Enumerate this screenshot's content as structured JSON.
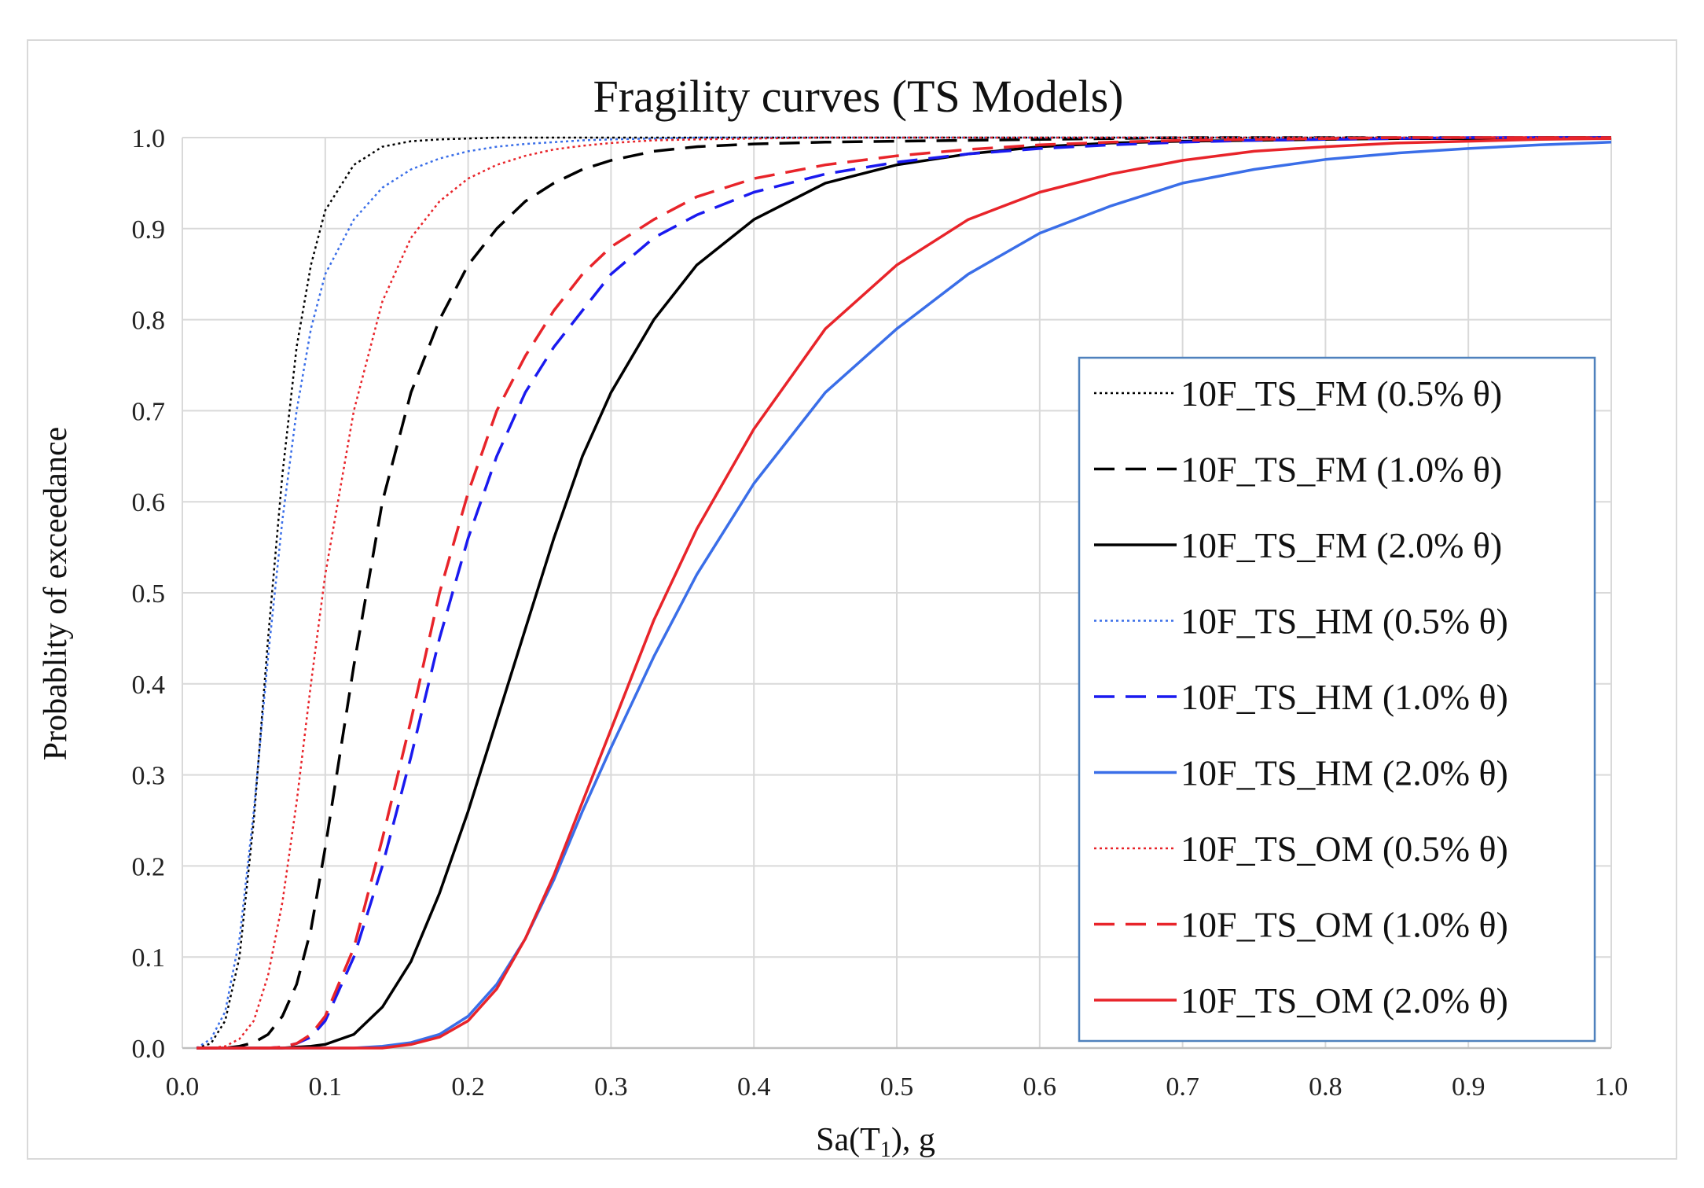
{
  "chart_data": {
    "type": "line",
    "title": "Fragility curves (TS Models)",
    "xlabel": "Sa(T1), g",
    "xlabel_main": "Sa(T",
    "xlabel_sub": "1",
    "xlabel_tail": "), g",
    "ylabel": "Probablity of exceedance",
    "xlim": [
      0.0,
      1.0
    ],
    "ylim": [
      0.0,
      1.0
    ],
    "xticks": [
      "0.0",
      "0.1",
      "0.2",
      "0.3",
      "0.4",
      "0.5",
      "0.6",
      "0.7",
      "0.8",
      "0.9",
      "1.0"
    ],
    "yticks": [
      "0.0",
      "0.1",
      "0.2",
      "0.3",
      "0.4",
      "0.5",
      "0.6",
      "0.7",
      "0.8",
      "0.9",
      "1.0"
    ],
    "grid": true,
    "legend_position": "right",
    "x": [
      0.01,
      0.02,
      0.03,
      0.04,
      0.05,
      0.06,
      0.07,
      0.08,
      0.09,
      0.1,
      0.12,
      0.14,
      0.16,
      0.18,
      0.2,
      0.22,
      0.24,
      0.26,
      0.28,
      0.3,
      0.33,
      0.36,
      0.4,
      0.45,
      0.5,
      0.55,
      0.6,
      0.65,
      0.7,
      0.75,
      0.8,
      0.85,
      0.9,
      0.95,
      1.0
    ],
    "series": [
      {
        "name": "10F_TS_FM (0.5% θ)",
        "color": "#000000",
        "style": "dotted",
        "values": [
          0.0,
          0.005,
          0.03,
          0.1,
          0.25,
          0.45,
          0.63,
          0.77,
          0.86,
          0.92,
          0.97,
          0.99,
          0.996,
          0.998,
          0.999,
          1.0,
          1.0,
          1.0,
          1.0,
          1.0,
          1.0,
          1.0,
          1.0,
          1.0,
          1.0,
          1.0,
          1.0,
          1.0,
          1.0,
          1.0,
          1.0,
          1.0,
          1.0,
          1.0,
          1.0
        ]
      },
      {
        "name": "10F_TS_FM (1.0% θ)",
        "color": "#000000",
        "style": "dashed",
        "values": [
          0.0,
          0.0,
          0.0,
          0.002,
          0.006,
          0.015,
          0.035,
          0.07,
          0.13,
          0.22,
          0.42,
          0.6,
          0.72,
          0.8,
          0.86,
          0.9,
          0.93,
          0.95,
          0.965,
          0.975,
          0.985,
          0.99,
          0.993,
          0.995,
          0.996,
          0.997,
          0.998,
          0.999,
          1.0,
          1.0,
          1.0,
          1.0,
          1.0,
          1.0,
          1.0
        ]
      },
      {
        "name": "10F_TS_FM (2.0% θ)",
        "color": "#000000",
        "style": "solid",
        "values": [
          0.0,
          0.0,
          0.0,
          0.0,
          0.0,
          0.0,
          0.0,
          0.001,
          0.002,
          0.004,
          0.015,
          0.045,
          0.095,
          0.17,
          0.26,
          0.36,
          0.46,
          0.56,
          0.65,
          0.72,
          0.8,
          0.86,
          0.91,
          0.95,
          0.97,
          0.982,
          0.99,
          0.994,
          0.996,
          0.997,
          0.998,
          0.999,
          0.999,
          1.0,
          1.0
        ]
      },
      {
        "name": "10F_TS_HM (0.5% θ)",
        "color": "#3a6ee8",
        "style": "dotted",
        "values": [
          0.0,
          0.01,
          0.04,
          0.12,
          0.26,
          0.43,
          0.58,
          0.7,
          0.79,
          0.85,
          0.91,
          0.945,
          0.965,
          0.977,
          0.985,
          0.99,
          0.993,
          0.995,
          0.997,
          0.998,
          0.999,
          1.0,
          1.0,
          1.0,
          1.0,
          1.0,
          1.0,
          1.0,
          1.0,
          1.0,
          1.0,
          1.0,
          1.0,
          1.0,
          1.0
        ]
      },
      {
        "name": "10F_TS_HM (1.0% θ)",
        "color": "#1a1aef",
        "style": "dashed",
        "values": [
          0.0,
          0.0,
          0.0,
          0.0,
          0.0,
          0.0,
          0.001,
          0.005,
          0.012,
          0.03,
          0.1,
          0.2,
          0.32,
          0.45,
          0.56,
          0.65,
          0.72,
          0.77,
          0.81,
          0.85,
          0.89,
          0.915,
          0.94,
          0.96,
          0.973,
          0.982,
          0.988,
          0.992,
          0.995,
          0.997,
          0.998,
          0.999,
          1.0,
          1.0,
          1.0
        ]
      },
      {
        "name": "10F_TS_HM (2.0% θ)",
        "color": "#3a6ee8",
        "style": "solid",
        "values": [
          0.0,
          0.0,
          0.0,
          0.0,
          0.0,
          0.0,
          0.0,
          0.0,
          0.0,
          0.0,
          0.0,
          0.002,
          0.006,
          0.015,
          0.035,
          0.07,
          0.12,
          0.185,
          0.26,
          0.33,
          0.43,
          0.52,
          0.62,
          0.72,
          0.79,
          0.85,
          0.895,
          0.925,
          0.95,
          0.965,
          0.976,
          0.983,
          0.988,
          0.992,
          0.995
        ]
      },
      {
        "name": "10F_TS_OM (0.5% θ)",
        "color": "#e8242a",
        "style": "dotted",
        "values": [
          0.0,
          0.0,
          0.002,
          0.01,
          0.03,
          0.08,
          0.16,
          0.27,
          0.4,
          0.52,
          0.7,
          0.82,
          0.89,
          0.93,
          0.955,
          0.97,
          0.98,
          0.987,
          0.991,
          0.994,
          0.997,
          0.998,
          0.999,
          1.0,
          1.0,
          1.0,
          1.0,
          1.0,
          1.0,
          1.0,
          1.0,
          1.0,
          1.0,
          1.0,
          1.0
        ]
      },
      {
        "name": "10F_TS_OM (1.0% θ)",
        "color": "#e8242a",
        "style": "dashed",
        "values": [
          0.0,
          0.0,
          0.0,
          0.0,
          0.0,
          0.0,
          0.001,
          0.005,
          0.015,
          0.035,
          0.11,
          0.23,
          0.36,
          0.5,
          0.61,
          0.7,
          0.76,
          0.81,
          0.85,
          0.88,
          0.91,
          0.935,
          0.955,
          0.97,
          0.98,
          0.987,
          0.992,
          0.995,
          0.997,
          0.998,
          0.999,
          1.0,
          1.0,
          1.0,
          1.0
        ]
      },
      {
        "name": "10F_TS_OM (2.0% θ)",
        "color": "#e8242a",
        "style": "solid",
        "values": [
          0.0,
          0.0,
          0.0,
          0.0,
          0.0,
          0.0,
          0.0,
          0.0,
          0.0,
          0.0,
          0.0,
          0.0,
          0.004,
          0.012,
          0.03,
          0.065,
          0.12,
          0.19,
          0.27,
          0.35,
          0.47,
          0.57,
          0.68,
          0.79,
          0.86,
          0.91,
          0.94,
          0.96,
          0.975,
          0.985,
          0.99,
          0.994,
          0.996,
          0.998,
          0.999
        ]
      }
    ]
  }
}
